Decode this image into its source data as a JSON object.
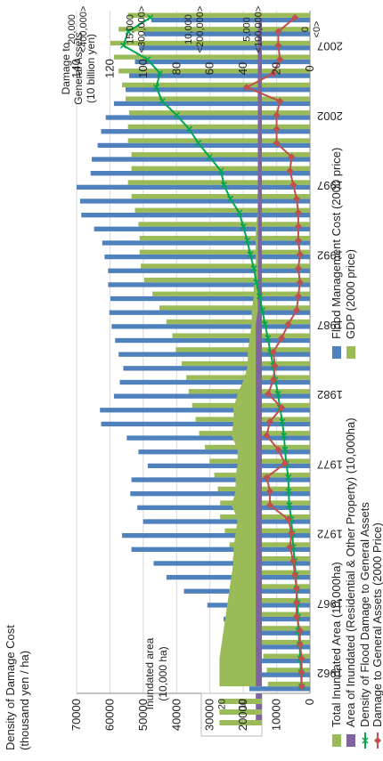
{
  "chart_data": {
    "type": "bar",
    "title": "",
    "years": [
      1961,
      1962,
      1963,
      1964,
      1965,
      1966,
      1967,
      1968,
      1969,
      1970,
      1971,
      1972,
      1973,
      1974,
      1975,
      1976,
      1977,
      1978,
      1979,
      1980,
      1981,
      1982,
      1983,
      1984,
      1985,
      1986,
      1987,
      1988,
      1989,
      1990,
      1991,
      1992,
      1993,
      1994,
      1995,
      1996,
      1997,
      1998,
      1999,
      2000,
      2001,
      2002,
      2003,
      2004,
      2005,
      2006,
      2007,
      2008,
      2009
    ],
    "x_tick_labels": [
      "1962",
      "1967",
      "1972",
      "1977",
      "1982",
      "1987",
      "1992",
      "1997",
      "2002",
      "2007"
    ],
    "left_axis": {
      "label_line1": "Density of Damage Cost",
      "label_line2": "(thousand yen / ha)",
      "range": [
        0,
        70000
      ],
      "ticks": [
        "0",
        "10000",
        "20000",
        "30000",
        "40000",
        "50000",
        "60000",
        "70000"
      ]
    },
    "mid_axis": {
      "label_line1": "Damage to",
      "label_line2": "General Assets",
      "label_line3": "(10 billion yen)",
      "range": [
        0,
        140
      ],
      "ticks": [
        "0",
        "20",
        "40",
        "60",
        "80",
        "100",
        "120",
        "140"
      ]
    },
    "right_axis": {
      "range": [
        0,
        20000
      ],
      "ticks": [
        {
          "line1": "0",
          "line2": "<0>"
        },
        {
          "line1": "5,000",
          "line2": "<100,000>"
        },
        {
          "line1": "10,000",
          "line2": "<200,000>"
        },
        {
          "line1": "15,000",
          "line2": "<300,000>"
        },
        {
          "line1": "20,000",
          "line2": "<400,000>"
        }
      ]
    },
    "inset_axis": {
      "label_line1": "Inundated area",
      "label_line2": "(10,000 ha)",
      "range": [
        0,
        30
      ],
      "ticks": [
        "10",
        "20"
      ]
    },
    "series": [
      {
        "name": "Flood Management Cost (2000 price)",
        "type": "bar",
        "axis": "right",
        "color": "#4f81bd",
        "values": [
          5200,
          4200,
          4800,
          5500,
          6200,
          7400,
          8800,
          10800,
          12300,
          13400,
          15300,
          16100,
          14300,
          14800,
          15400,
          15300,
          13900,
          14700,
          15700,
          17900,
          18000,
          16800,
          16300,
          16000,
          16400,
          16700,
          17000,
          17200,
          17100,
          17300,
          17300,
          17600,
          17800,
          18500,
          19600,
          19700,
          20000,
          18800,
          18700,
          18200,
          17900,
          17500,
          16800,
          15800,
          15500,
          15000,
          14600,
          14200,
          13600
        ]
      },
      {
        "name": "GDP (2000 price)",
        "type": "bar",
        "axis": "right",
        "color": "#9bbb59",
        "values": [
          3600,
          3700,
          4000,
          4400,
          4600,
          4800,
          5200,
          5600,
          6100,
          6600,
          6900,
          7300,
          7700,
          7700,
          7900,
          8200,
          8600,
          9000,
          9500,
          9800,
          10100,
          10400,
          10600,
          11000,
          11500,
          11800,
          12300,
          12900,
          13500,
          14200,
          14500,
          14600,
          14600,
          14700,
          15000,
          15300,
          15600,
          15300,
          15300,
          15600,
          15600,
          15500,
          15800,
          16100,
          16400,
          16800,
          17100,
          16400,
          15600
        ]
      },
      {
        "name": "Total Inundated Area (10,000ha)",
        "type": "area",
        "axis": "inset",
        "color": "#9bbb59",
        "values": [
          21,
          21,
          21,
          20,
          19,
          18,
          17,
          16,
          15,
          14,
          14,
          13,
          12,
          15,
          13,
          13,
          12,
          12,
          15,
          14,
          14,
          12,
          9,
          7,
          7,
          6,
          5,
          5,
          4,
          4,
          3,
          3,
          3,
          3,
          2,
          2,
          2,
          2,
          2,
          2,
          2,
          2,
          2,
          2,
          2,
          2,
          2,
          2,
          1
        ]
      },
      {
        "name": "Area of Inundated (Residential & Other Property) (10,000ha)",
        "type": "area",
        "axis": "inset",
        "color": "#8064a2",
        "values": [
          3,
          3,
          3,
          3,
          3,
          3,
          3,
          3,
          3,
          3,
          3,
          3,
          3,
          3,
          3,
          3,
          3,
          3,
          3,
          3,
          3,
          3,
          3,
          3,
          3,
          3,
          3,
          2,
          2,
          2,
          2,
          2,
          2,
          2,
          2,
          2,
          2,
          2,
          2,
          2,
          2,
          2,
          2,
          2,
          2,
          2,
          2,
          2,
          1
        ]
      },
      {
        "name": "Density of Flood Damage to General Assets",
        "type": "line",
        "axis": "left",
        "color": "#00a651",
        "marker": "x",
        "values": [
          2500,
          2700,
          2900,
          3100,
          3500,
          3600,
          3800,
          4000,
          4300,
          4600,
          5000,
          5300,
          5600,
          6200,
          6400,
          6500,
          7100,
          7500,
          7800,
          8300,
          9000,
          9600,
          10400,
          11000,
          11900,
          12600,
          13500,
          14300,
          15100,
          16100,
          16800,
          17900,
          18800,
          20000,
          21200,
          23900,
          25800,
          26700,
          30100,
          33500,
          36200,
          40000,
          44300,
          46100,
          45000,
          48700,
          56000,
          54500,
          47900
        ]
      },
      {
        "name": "Damage to General Assets (2000 Price)",
        "type": "line",
        "axis": "mid",
        "color": "#c0504d",
        "marker": "diamond",
        "values": [
          5,
          5,
          5,
          6,
          6,
          8,
          8,
          8,
          9,
          10,
          12,
          11,
          13,
          24,
          24,
          26,
          15,
          19,
          26,
          24,
          17,
          25,
          22,
          21,
          22,
          17,
          13,
          8,
          7,
          6,
          7,
          6,
          7,
          7,
          7,
          8,
          10,
          12,
          11,
          20,
          20,
          20,
          18,
          38,
          22,
          18,
          19,
          19,
          9
        ]
      }
    ],
    "legend": {
      "position": "bottom"
    }
  }
}
